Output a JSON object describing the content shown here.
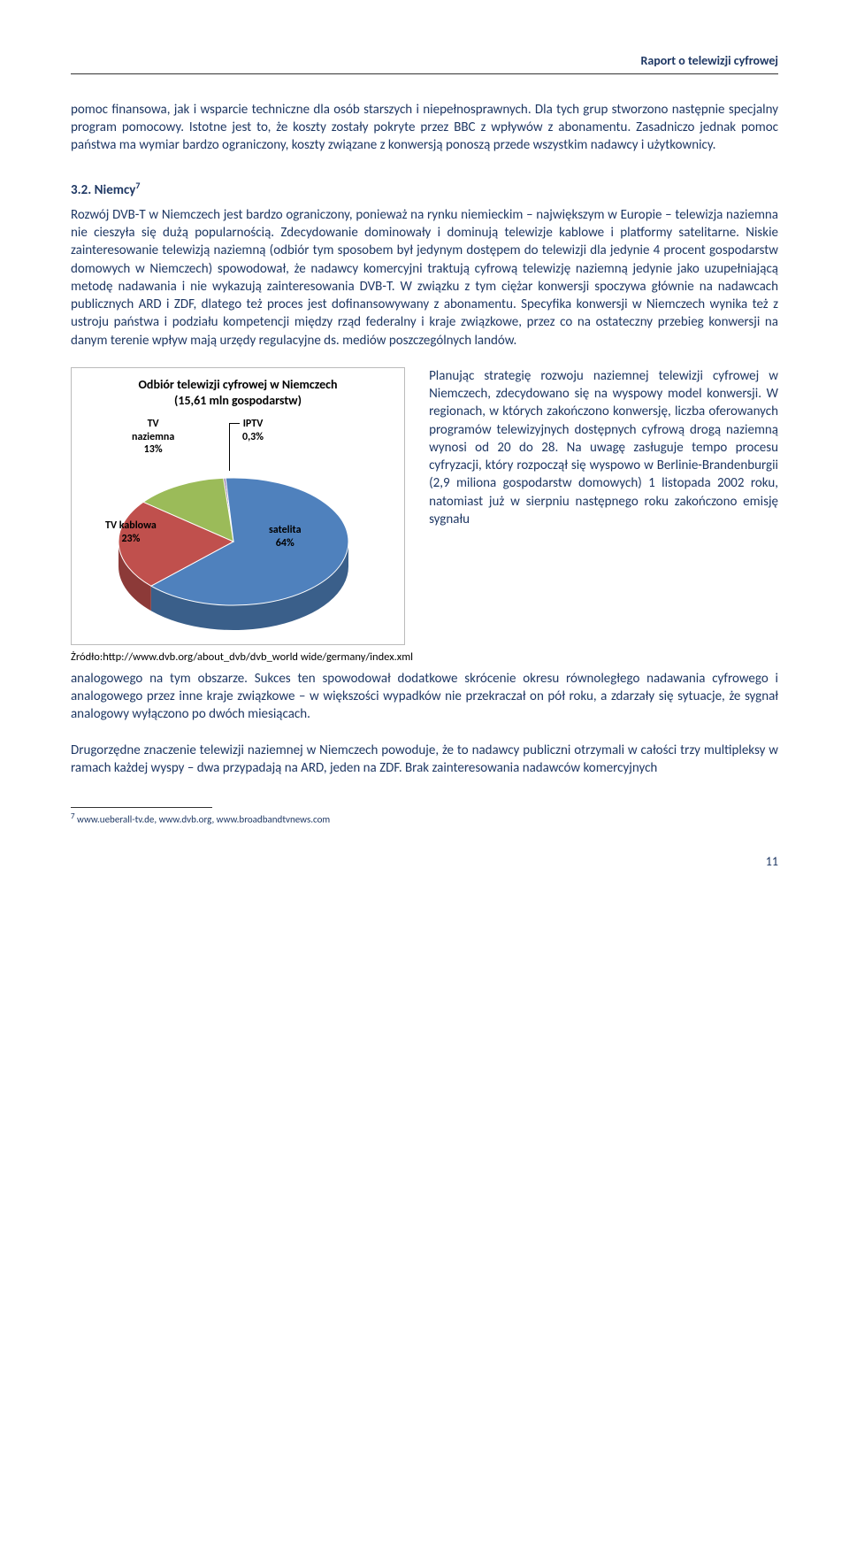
{
  "header": {
    "title": "Raport o telewizji cyfrowej"
  },
  "para1": "pomoc finansowa, jak i wsparcie techniczne dla osób starszych i niepełnosprawnych. Dla tych grup stworzono następnie specjalny program pomocowy. Istotne jest to, że koszty zostały pokryte przez BBC z wpływów z abonamentu. Zasadniczo jednak pomoc państwa ma wymiar bardzo ograniczony, koszty związane z konwersją ponoszą przede wszystkim nadawcy i użytkownicy.",
  "section": {
    "number": "3.2.",
    "title": "Niemcy",
    "fn": "7"
  },
  "para2": "Rozwój DVB-T w Niemczech jest bardzo ograniczony, ponieważ na rynku niemieckim – największym w Europie – telewizja naziemna nie cieszyła się dużą popularnością. Zdecydowanie dominowały i dominują telewizje kablowe i platformy satelitarne. Niskie zainteresowanie telewizją naziemną (odbiór tym sposobem był jedynym dostępem do telewizji dla jedynie 4 procent gospodarstw domowych w Niemczech) spowodował, że nadawcy komercyjni traktują cyfrową telewizję naziemną jedynie jako uzupełniającą metodę nadawania i nie wykazują zainteresowania DVB-T. W związku z tym ciężar konwersji spoczywa głównie na nadawcach publicznych ARD i ZDF, dlatego też proces jest dofinansowywany z abonamentu. Specyfika konwersji w Niemczech wynika też z ustroju państwa i podziału kompetencji między rząd federalny i kraje związkowe, przez co na ostateczny przebieg konwersji na danym terenie wpływ mają urzędy regulacyjne ds. mediów poszczególnych landów.",
  "chart": {
    "type": "pie-3d",
    "title_l1": "Odbiór telewizji cyfrowej w Niemczech",
    "title_l2": "(15,61 mln gospodarstw)",
    "slices": [
      {
        "key": "satelita",
        "label_l1": "satelita",
        "label_l2": "64%",
        "value": 64,
        "color": "#4f81bd",
        "side": "#3a5f8a"
      },
      {
        "key": "tv_kablowa",
        "label_l1": "TV kablowa",
        "label_l2": "23%",
        "value": 23,
        "color": "#c0504d",
        "side": "#8c3a38"
      },
      {
        "key": "tv_naziemna",
        "label_l1": "TV",
        "label_l2": "naziemna",
        "label_l3": "13%",
        "value": 13,
        "color": "#9bbb59",
        "side": "#6f873f"
      },
      {
        "key": "iptv",
        "label_l1": "IPTV",
        "label_l2": "0,3%",
        "value": 0.3,
        "color": "#8064a2",
        "side": "#5c4876"
      }
    ],
    "background_color": "#ffffff",
    "border_color": "#bbbbbb",
    "label_fontsize": 12,
    "title_fontsize": 14,
    "source": "Żródło:http://www.dvb.org/about_dvb/dvb_world wide/germany/index.xml"
  },
  "para3_right": "Planując strategię rozwoju naziemnej telewizji cyfrowej w Niemczech, zdecydowano się na wyspowy model konwersji. W regionach, w których zakoń­czono konwersję, liczba oferowanych programów telewi­zyjnych dostępnych cyfrową drogą naziemną wynosi od 20 do 28. Na uwagę zasługuje tempo procesu cyfryzacji, który rozpoczął się wyspowo w Berlinie-Brandenburgii (2,9 miliona gospodarstw domowych) 1 listopada 2002 roku, natomiast już w sierpniu następnego roku zakończono emisję sygnału",
  "para3_cont": "analogowego na tym obszarze. Sukces ten spowodował dodatkowe skrócenie okresu równoległego nadawania cyfrowego i analogowego przez inne kraje związkowe – w większości wypadków nie przekraczał on pół roku, a zdarzały się sytuacje, że sygnał analogowy wyłączono po dwóch miesiącach.",
  "para4": "Drugorzędne znaczenie telewizji naziemnej w Niemczech powoduje, że to nadawcy publiczni otrzymali w całości trzy multipleksy w ramach każdej wyspy – dwa przypadają na ARD, jeden na ZDF. Brak zainteresowania nadawców komercyjnych",
  "footnote": {
    "num": "7",
    "text": " www.ueberall-tv.de, www.dvb.org, www.broadbandtvnews.com"
  },
  "page": "11"
}
